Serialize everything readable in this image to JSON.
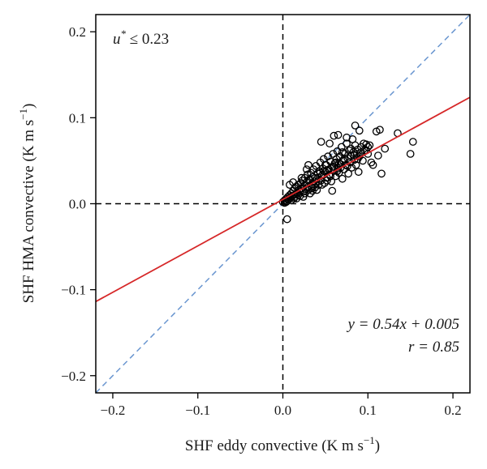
{
  "chart_data": {
    "type": "scatter",
    "xlabel": "SHF eddy convective (K m s",
    "xlabel_sup": "−1",
    "xlabel_close": ")",
    "ylabel": "SHF HMA convective (K m s",
    "ylabel_sup": "−1",
    "ylabel_close": ")",
    "xlim": [
      -0.22,
      0.22
    ],
    "ylim": [
      -0.22,
      0.22
    ],
    "xticks": [
      -0.2,
      -0.1,
      0.0,
      0.1,
      0.2
    ],
    "xtick_labels": [
      "−0.2",
      "−0.1",
      "0.0",
      "0.1",
      "0.2"
    ],
    "yticks": [
      -0.2,
      -0.1,
      0.0,
      0.1,
      0.2
    ],
    "ytick_labels": [
      "−0.2",
      "−0.1",
      "0.0",
      "0.1",
      "0.2"
    ],
    "grid": false,
    "annotation_top_left": {
      "var": "u",
      "sup": "*",
      "rest": " ≤ 0.23",
      "color": "#2a9fd6"
    },
    "fit_line": {
      "slope": 0.54,
      "intercept": 0.005,
      "color": "#d62728"
    },
    "fit_label_line1": "y = 0.54x + 0.005",
    "fit_label_line2": "r = 0.85",
    "fit_label_color": "#b3202a",
    "identity_line": {
      "slope": 1,
      "intercept": 0,
      "color": "#6a96d0",
      "style": "dashed"
    },
    "zero_lines": {
      "color": "#000000",
      "style": "dashed"
    },
    "points": [
      [
        0.0,
        0.002
      ],
      [
        0.002,
        0.001
      ],
      [
        0.003,
        0.004
      ],
      [
        0.004,
        0.006
      ],
      [
        0.005,
        0.003
      ],
      [
        0.006,
        0.008
      ],
      [
        0.007,
        0.005
      ],
      [
        0.008,
        0.01
      ],
      [
        0.009,
        0.007
      ],
      [
        0.01,
        0.012
      ],
      [
        0.011,
        0.009
      ],
      [
        0.012,
        0.015
      ],
      [
        0.013,
        0.006
      ],
      [
        0.014,
        0.018
      ],
      [
        0.015,
        0.011
      ],
      [
        0.016,
        0.02
      ],
      [
        0.017,
        0.013
      ],
      [
        0.018,
        0.022
      ],
      [
        0.019,
        0.016
      ],
      [
        0.02,
        0.009
      ],
      [
        0.021,
        0.024
      ],
      [
        0.022,
        0.018
      ],
      [
        0.023,
        0.027
      ],
      [
        0.024,
        0.014
      ],
      [
        0.025,
        0.021
      ],
      [
        0.026,
        0.03
      ],
      [
        0.027,
        0.017
      ],
      [
        0.028,
        0.025
      ],
      [
        0.029,
        0.034
      ],
      [
        0.03,
        0.02
      ],
      [
        0.031,
        0.028
      ],
      [
        0.032,
        0.012
      ],
      [
        0.033,
        0.036
      ],
      [
        0.034,
        0.023
      ],
      [
        0.035,
        0.031
      ],
      [
        0.036,
        0.04
      ],
      [
        0.037,
        0.026
      ],
      [
        0.038,
        0.019
      ],
      [
        0.039,
        0.044
      ],
      [
        0.04,
        0.029
      ],
      [
        0.041,
        0.035
      ],
      [
        0.042,
        0.022
      ],
      [
        0.043,
        0.038
      ],
      [
        0.044,
        0.048
      ],
      [
        0.045,
        0.027
      ],
      [
        0.046,
        0.033
      ],
      [
        0.047,
        0.041
      ],
      [
        0.048,
        0.052
      ],
      [
        0.049,
        0.024
      ],
      [
        0.05,
        0.037
      ],
      [
        0.051,
        0.045
      ],
      [
        0.052,
        0.03
      ],
      [
        0.053,
        0.055
      ],
      [
        0.054,
        0.04
      ],
      [
        0.055,
        0.034
      ],
      [
        0.056,
        0.049
      ],
      [
        0.057,
        0.026
      ],
      [
        0.058,
        0.043
      ],
      [
        0.059,
        0.058
      ],
      [
        0.06,
        0.038
      ],
      [
        0.061,
        0.047
      ],
      [
        0.062,
        0.032
      ],
      [
        0.063,
        0.052
      ],
      [
        0.064,
        0.061
      ],
      [
        0.065,
        0.041
      ],
      [
        0.066,
        0.036
      ],
      [
        0.067,
        0.055
      ],
      [
        0.068,
        0.046
      ],
      [
        0.069,
        0.066
      ],
      [
        0.07,
        0.029
      ],
      [
        0.071,
        0.05
      ],
      [
        0.072,
        0.04
      ],
      [
        0.073,
        0.058
      ],
      [
        0.074,
        0.045
      ],
      [
        0.075,
        0.07
      ],
      [
        0.076,
        0.053
      ],
      [
        0.077,
        0.035
      ],
      [
        0.078,
        0.062
      ],
      [
        0.079,
        0.048
      ],
      [
        0.08,
        0.056
      ],
      [
        0.081,
        0.042
      ],
      [
        0.082,
        0.075
      ],
      [
        0.083,
        0.06
      ],
      [
        0.084,
        0.051
      ],
      [
        0.085,
        0.068
      ],
      [
        0.086,
        0.045
      ],
      [
        0.087,
        0.058
      ],
      [
        0.088,
        0.063
      ],
      [
        0.089,
        0.037
      ],
      [
        0.09,
        0.055
      ],
      [
        0.092,
        0.066
      ],
      [
        0.094,
        0.05
      ],
      [
        0.096,
        0.062
      ],
      [
        0.098,
        0.069
      ],
      [
        0.1,
        0.058
      ],
      [
        0.102,
        0.068
      ],
      [
        0.104,
        0.048
      ],
      [
        0.106,
        0.045
      ],
      [
        0.11,
        0.084
      ],
      [
        0.112,
        0.056
      ],
      [
        0.114,
        0.086
      ],
      [
        0.116,
        0.035
      ],
      [
        0.12,
        0.064
      ],
      [
        0.135,
        0.082
      ],
      [
        0.15,
        0.058
      ],
      [
        0.153,
        0.072
      ],
      [
        0.085,
        0.091
      ],
      [
        0.075,
        0.077
      ],
      [
        0.065,
        0.08
      ],
      [
        0.06,
        0.079
      ],
      [
        0.045,
        0.072
      ],
      [
        0.03,
        0.045
      ],
      [
        0.055,
        0.07
      ],
      [
        0.09,
        0.085
      ],
      [
        0.058,
        0.015
      ],
      [
        0.04,
        0.016
      ],
      [
        0.005,
        -0.018
      ],
      [
        0.035,
        0.015
      ],
      [
        0.008,
        0.022
      ],
      [
        0.012,
        0.025
      ],
      [
        0.018,
        0.01
      ],
      [
        0.022,
        0.03
      ],
      [
        0.028,
        0.04
      ],
      [
        0.032,
        0.027
      ],
      [
        0.036,
        0.021
      ],
      [
        0.044,
        0.036
      ],
      [
        0.05,
        0.045
      ],
      [
        0.052,
        0.039
      ],
      [
        0.062,
        0.048
      ],
      [
        0.066,
        0.047
      ],
      [
        0.07,
        0.06
      ],
      [
        0.072,
        0.052
      ],
      [
        0.076,
        0.044
      ],
      [
        0.08,
        0.064
      ],
      [
        0.084,
        0.056
      ],
      [
        0.088,
        0.052
      ],
      [
        0.092,
        0.06
      ],
      [
        0.095,
        0.07
      ],
      [
        0.098,
        0.062
      ],
      [
        0.1,
        0.066
      ],
      [
        0.002,
        0.004
      ],
      [
        0.004,
        0.002
      ],
      [
        0.006,
        0.005
      ],
      [
        0.01,
        0.004
      ],
      [
        0.014,
        0.008
      ],
      [
        0.016,
        0.006
      ],
      [
        0.02,
        0.014
      ],
      [
        0.024,
        0.008
      ],
      [
        0.026,
        0.012
      ],
      [
        0.03,
        0.016
      ],
      [
        0.034,
        0.018
      ],
      [
        0.038,
        0.03
      ],
      [
        0.042,
        0.026
      ],
      [
        0.046,
        0.022
      ],
      [
        0.048,
        0.038
      ],
      [
        0.052,
        0.027
      ],
      [
        0.056,
        0.032
      ],
      [
        0.06,
        0.043
      ],
      [
        0.064,
        0.038
      ],
      [
        0.068,
        0.042
      ]
    ]
  }
}
